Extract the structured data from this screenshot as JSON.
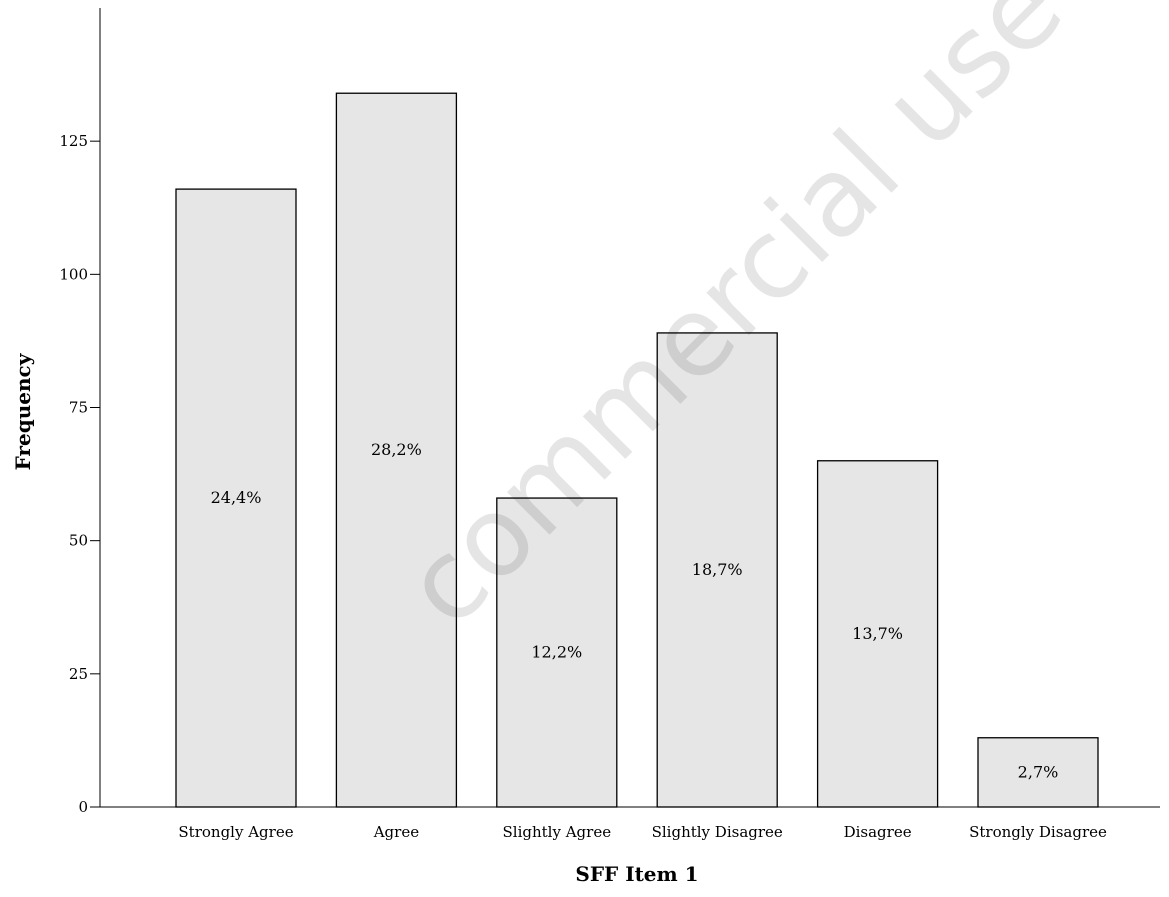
{
  "chart_data": {
    "type": "bar",
    "categories": [
      "Strongly Agree",
      "Agree",
      "Slightly Agree",
      "Slightly Disagree",
      "Disagree",
      "Strongly Disagree"
    ],
    "values": [
      116,
      134,
      58,
      89,
      65,
      13
    ],
    "data_labels": [
      "24,4%",
      "28,2%",
      "12,2%",
      "18,7%",
      "13,7%",
      "2,7%"
    ],
    "xlabel": "SFF Item 1",
    "ylabel": "Frequency",
    "ylim": [
      0,
      150
    ],
    "yticks": [
      0,
      25,
      50,
      75,
      100,
      125
    ],
    "ytick_labels": [
      "0",
      "25",
      "50",
      "75",
      "100",
      "125"
    ],
    "grid": false,
    "bar_color": "#e6e6e6",
    "bar_edge_color": "#000000"
  },
  "watermark": "commercial use only"
}
